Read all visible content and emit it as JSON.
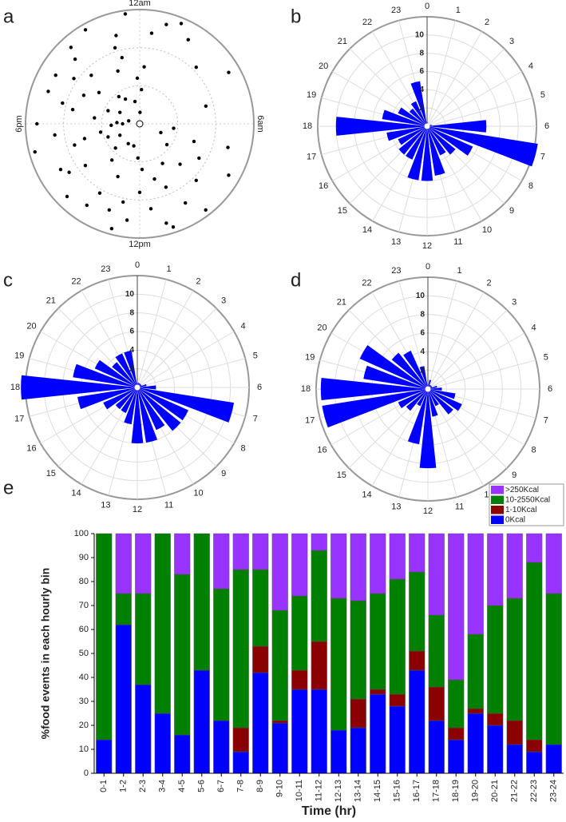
{
  "chart_data": [
    {
      "type": "polar_scatter",
      "panel": "a",
      "color": "#000000",
      "xlim": [
        0,
        24
      ],
      "rlim": [
        0,
        1
      ],
      "xticks": [
        {
          "value": 0,
          "label": "12am"
        },
        {
          "value": 6,
          "label": "6am"
        },
        {
          "value": 12,
          "label": "12pm"
        },
        {
          "value": 18,
          "label": "6pm"
        }
      ],
      "x": [
        18,
        19,
        20,
        21,
        22,
        23,
        23.5,
        17,
        16,
        15,
        14,
        13,
        12.5,
        12,
        11,
        10,
        9,
        8,
        7,
        9.5,
        10.5,
        11.5,
        13.5,
        14.5,
        15.5,
        16.5,
        17.5,
        18.5,
        19.5,
        20.5,
        21.5,
        22.5,
        23.2,
        0.2,
        0.3,
        0.5,
        1,
        2,
        3,
        4,
        5,
        1.5,
        18.2,
        18,
        17.8,
        19,
        0.1,
        23.8,
        6.5,
        7.5,
        8.5,
        12.2,
        13,
        16,
        20,
        22,
        21,
        19.8,
        17,
        15,
        14,
        10,
        11,
        9,
        8,
        7.2,
        12.8,
        23,
        22.8,
        21.2,
        18.8,
        17.2,
        16.8,
        20.3,
        19.3,
        15.7,
        14.2,
        13.3,
        11.8,
        10.8
      ],
      "y": [
        0.9,
        0.7,
        0.85,
        0.6,
        0.95,
        0.8,
        0.97,
        0.5,
        0.8,
        0.9,
        0.7,
        0.95,
        0.85,
        0.6,
        0.9,
        0.8,
        0.7,
        0.6,
        0.8,
        0.95,
        0.6,
        0.75,
        0.5,
        0.4,
        0.6,
        0.3,
        0.75,
        0.4,
        0.3,
        0.45,
        0.3,
        0.5,
        0.2,
        0.3,
        0.5,
        0.8,
        0.9,
        0.85,
        0.7,
        0.9,
        0.6,
        0.95,
        0.2,
        0.15,
        0.25,
        0.1,
        0.1,
        0.4,
        0.3,
        0.2,
        0.3,
        0.3,
        0.2,
        0.2,
        0.2,
        0.25,
        0.8,
        0.55,
        0.95,
        0.3,
        0.2,
        0.4,
        0.5,
        0.5,
        0.9,
        0.5,
        0.7,
        0.6,
        0.7,
        0.9,
        0.6,
        0.35,
        0.6,
        0.7,
        0.85,
        0.75,
        0.85,
        0.8,
        0.4,
        0.95
      ]
    },
    {
      "type": "rose",
      "panel": "b",
      "color": "#0000ff",
      "rlim": [
        0,
        12
      ],
      "rticks": [
        2,
        4,
        6,
        8,
        10
      ],
      "categories": [
        "0",
        "1",
        "2",
        "3",
        "4",
        "5",
        "6",
        "7",
        "8",
        "9",
        "10",
        "11",
        "12",
        "13",
        "14",
        "15",
        "16",
        "17",
        "18",
        "19",
        "20",
        "21",
        "22",
        "23"
      ],
      "values": [
        0.5,
        0.3,
        0.3,
        0.2,
        0.3,
        0.5,
        6.5,
        12.3,
        5.5,
        4,
        3.5,
        5.5,
        6,
        6,
        4,
        4,
        3.5,
        4.5,
        10,
        5,
        3.5,
        2.5,
        3,
        5
      ]
    },
    {
      "type": "rose",
      "panel": "c",
      "color": "#0000ff",
      "rlim": [
        0,
        12
      ],
      "rticks": [
        2,
        4,
        6,
        8,
        10
      ],
      "categories": [
        "0",
        "1",
        "2",
        "3",
        "4",
        "5",
        "6",
        "7",
        "8",
        "9",
        "10",
        "11",
        "12",
        "13",
        "14",
        "15",
        "16",
        "17",
        "18",
        "19",
        "20",
        "21",
        "22",
        "23"
      ],
      "values": [
        0.5,
        0.5,
        0.5,
        0.5,
        0.5,
        1,
        2,
        10.5,
        6,
        6,
        5,
        6,
        6,
        4,
        3,
        3,
        4,
        6.5,
        12.5,
        7,
        5,
        3.5,
        4,
        4
      ]
    },
    {
      "type": "rose",
      "panel": "d",
      "color": "#0000ff",
      "rlim": [
        0,
        12
      ],
      "rticks": [
        2,
        4,
        6,
        8,
        10
      ],
      "categories": [
        "0",
        "1",
        "2",
        "3",
        "4",
        "5",
        "6",
        "7",
        "8",
        "9",
        "10",
        "11",
        "12",
        "13",
        "14",
        "15",
        "16",
        "17",
        "18",
        "19",
        "20",
        "21",
        "22",
        "23"
      ],
      "values": [
        0.5,
        1,
        0.5,
        0.5,
        0.5,
        1,
        1.5,
        3,
        4,
        3.5,
        2,
        3,
        8.5,
        6,
        2,
        3,
        3.5,
        11.5,
        11.5,
        7,
        8,
        5,
        4.5,
        2.5
      ]
    },
    {
      "type": "stacked_bar",
      "panel": "e",
      "ylabel": "%food events in each hourly bin",
      "xlabel": "Time (hr)",
      "ylim": [
        0,
        100
      ],
      "yticks": [
        0,
        10,
        20,
        30,
        40,
        50,
        60,
        70,
        80,
        90,
        100
      ],
      "categories": [
        "0-1",
        "1-2",
        "2-3",
        "3-4",
        "4-5",
        "5-6",
        "6-7",
        "7-8",
        "8-9",
        "9-10",
        "10-11",
        "11-12",
        "12-13",
        "13-14",
        "14-15",
        "15-16",
        "16-17",
        "17-18",
        "18-19",
        "19-20",
        "20-21",
        "21-22",
        "22-23",
        "23-24"
      ],
      "series": [
        {
          "name": "0Kcal",
          "color": "#0000ff",
          "values": [
            14,
            62,
            37,
            25,
            16,
            43,
            22,
            9,
            42,
            21,
            35,
            35,
            18,
            19,
            33,
            28,
            43,
            22,
            14,
            25,
            20,
            12,
            9,
            12
          ]
        },
        {
          "name": "1-10Kcal",
          "color": "#8b0000",
          "values": [
            0,
            0,
            0,
            0,
            0,
            0,
            0,
            10,
            11,
            1,
            8,
            20,
            0,
            12,
            2,
            5,
            8,
            14,
            5,
            2,
            5,
            10,
            5,
            0
          ]
        },
        {
          "name": "10-2550Kcal",
          "color": "#008000",
          "values": [
            86,
            13,
            38,
            75,
            67,
            57,
            55,
            66,
            32,
            46,
            31,
            38,
            55,
            41,
            40,
            48,
            33,
            30,
            20,
            31,
            45,
            51,
            74,
            63
          ]
        },
        {
          "name": ">250Kcal",
          "color": "#9933ff",
          "values": [
            0,
            25,
            25,
            0,
            17,
            0,
            23,
            15,
            15,
            32,
            26,
            7,
            27,
            28,
            25,
            19,
            16,
            34,
            61,
            42,
            30,
            27,
            12,
            25
          ]
        }
      ],
      "legend": "top-right"
    }
  ]
}
